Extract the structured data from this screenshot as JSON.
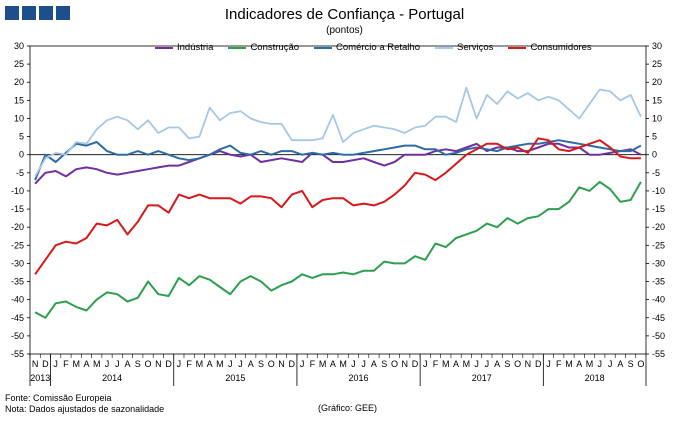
{
  "header": {
    "title": "Indicadores de Confiança - Portugal",
    "subtitle": "(pontos)"
  },
  "footer": {
    "source": "Fonte: Comissão Europeia",
    "note": "Nota: Dados ajustados de sazonalidade",
    "credit": "(Gráfico: GEE)"
  },
  "chart_data": {
    "type": "line",
    "title": "Indicadores de Confiança - Portugal",
    "subtitle": "(pontos)",
    "ylim": [
      -55,
      30
    ],
    "yticks": [
      30,
      25,
      20,
      15,
      10,
      5,
      0,
      -5,
      -10,
      -15,
      -20,
      -25,
      -30,
      -35,
      -40,
      -45,
      -50,
      -55
    ],
    "grid": false,
    "legend_position": "top",
    "month_labels": [
      "N",
      "D",
      "J",
      "F",
      "M",
      "A",
      "M",
      "J",
      "J",
      "A",
      "S",
      "O",
      "N",
      "D",
      "J",
      "F",
      "M",
      "A",
      "M",
      "J",
      "J",
      "A",
      "S",
      "O",
      "N",
      "D",
      "J",
      "F",
      "M",
      "A",
      "M",
      "J",
      "J",
      "A",
      "S",
      "O",
      "N",
      "D",
      "J",
      "F",
      "M",
      "A",
      "M",
      "J",
      "J",
      "A",
      "S",
      "O",
      "N",
      "D",
      "J",
      "F",
      "M",
      "A",
      "M",
      "J",
      "J",
      "A",
      "S",
      "O"
    ],
    "years": [
      {
        "label": "2013",
        "start": 0,
        "end": 1
      },
      {
        "label": "2014",
        "start": 2,
        "end": 13
      },
      {
        "label": "2015",
        "start": 14,
        "end": 25
      },
      {
        "label": "2016",
        "start": 26,
        "end": 37
      },
      {
        "label": "2017",
        "start": 38,
        "end": 49
      },
      {
        "label": "2018",
        "start": 50,
        "end": 59
      }
    ],
    "series": [
      {
        "name": "Indústria",
        "color": "#7030a0",
        "values": [
          -8,
          -5,
          -4.5,
          -6,
          -4,
          -3.5,
          -4,
          -5,
          -5.5,
          -5,
          -4.5,
          -4,
          -3.5,
          -3,
          -3,
          -2,
          -1,
          0,
          1,
          0,
          -0.5,
          0,
          -2,
          -1.5,
          -1,
          -1.5,
          -2,
          0.5,
          0,
          -2,
          -2,
          -1.5,
          -1,
          -2,
          -3,
          -2,
          0,
          0,
          0,
          1,
          1.5,
          1,
          2,
          3,
          1,
          2,
          2,
          1,
          1,
          2,
          3,
          3,
          2,
          2,
          0,
          0,
          0.5,
          1,
          1.5,
          0
        ]
      },
      {
        "name": "Construção",
        "color": "#2e9e4f",
        "values": [
          -43.5,
          -45,
          -41,
          -40.5,
          -42,
          -43,
          -40,
          -38,
          -38.5,
          -40.5,
          -39.5,
          -35,
          -38.5,
          -39,
          -34,
          -36,
          -33.5,
          -34.5,
          -36.5,
          -38.5,
          -35,
          -33.5,
          -35,
          -37.5,
          -36,
          -35,
          -33,
          -34,
          -33,
          -33,
          -32.5,
          -33,
          -32,
          -32,
          -29.5,
          -30,
          -30,
          -28,
          -29,
          -24.5,
          -25.5,
          -23,
          -22,
          -21,
          -19,
          -20,
          -17.5,
          -19,
          -17.5,
          -17,
          -15,
          -15,
          -13,
          -9,
          -10,
          -7.5,
          -9.5,
          -13,
          -12.5,
          -7.5
        ]
      },
      {
        "name": "Comércio a Retalho",
        "color": "#2e6ca4",
        "values": [
          -7,
          0,
          -2,
          0.5,
          3,
          2.5,
          3.5,
          1,
          0,
          0,
          1,
          0,
          1,
          0,
          -1,
          -1.5,
          -1,
          0,
          1.5,
          2.5,
          0.5,
          0,
          1,
          0,
          1,
          1,
          0,
          0.5,
          0,
          0.5,
          0,
          0,
          0.5,
          1,
          1.5,
          2,
          2.5,
          2.5,
          1.5,
          1.5,
          0,
          0.5,
          1.5,
          2,
          1.5,
          1,
          2,
          2.5,
          3,
          3,
          3.5,
          4,
          3.5,
          3,
          2.5,
          2,
          1.5,
          1,
          1,
          2.5
        ]
      },
      {
        "name": "Serviços",
        "color": "#a6c8e6",
        "values": [
          -6,
          -1,
          0.5,
          0,
          3.5,
          3,
          7,
          9.5,
          10.5,
          9.5,
          7,
          9.5,
          6,
          7.5,
          7.5,
          4.5,
          5,
          13,
          9.5,
          11.5,
          12,
          10,
          9,
          8.5,
          8.5,
          4,
          4,
          4,
          4.5,
          11,
          3.5,
          6,
          7,
          8,
          7.5,
          7,
          6,
          7.5,
          8,
          10.5,
          10.5,
          9,
          18.5,
          10,
          16.5,
          14,
          17.5,
          15.5,
          17,
          15,
          16,
          15,
          12.5,
          10,
          14,
          18,
          17.5,
          15,
          16.5,
          10.5
        ]
      },
      {
        "name": "Consumidores",
        "color": "#d7191c",
        "values": [
          -33,
          -29,
          -25,
          -24,
          -24.5,
          -23,
          -19,
          -19.5,
          -18,
          -22,
          -18.5,
          -14,
          -14,
          -16,
          -11,
          -12,
          -11,
          -12,
          -12,
          -12,
          -13.5,
          -11.5,
          -11.5,
          -12,
          -14.5,
          -11,
          -10,
          -14.5,
          -12.5,
          -12,
          -12,
          -14,
          -13.5,
          -14,
          -13,
          -11,
          -8.5,
          -5,
          -5.5,
          -7,
          -5,
          -2.5,
          0,
          1.5,
          3,
          3,
          1.5,
          2,
          0.5,
          4.5,
          4,
          1.5,
          1,
          2,
          3,
          4,
          2,
          -0.5,
          -1,
          -1
        ]
      }
    ]
  }
}
